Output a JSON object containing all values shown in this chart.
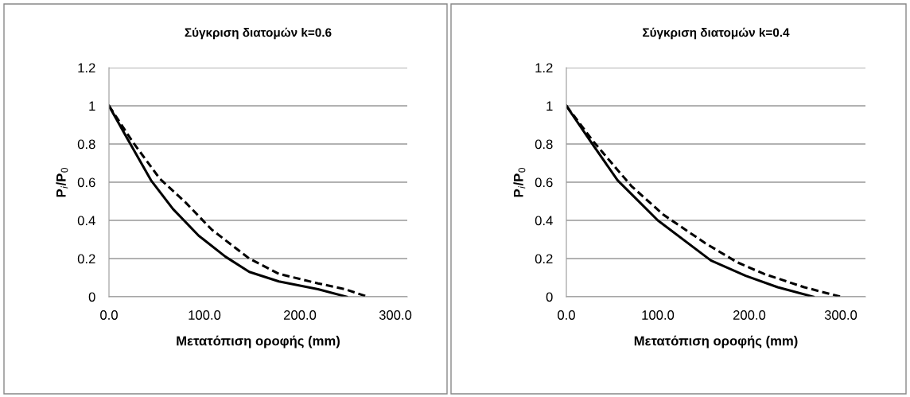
{
  "chart_data": [
    {
      "type": "line",
      "title": "Σύγκριση διατομών k=0.6",
      "xlabel": "Μετατόπιση οροφής (mm)",
      "ylabel": "P$_{i}$/P$_{0}$",
      "grid": "y",
      "marker": "none",
      "xlim": [
        0,
        312.5
      ],
      "xticks": [
        {
          "value": 0,
          "label": "0.0"
        },
        {
          "value": 100,
          "label": "100.0"
        },
        {
          "value": 200,
          "label": "200.0"
        },
        {
          "value": 300,
          "label": "300.0"
        }
      ],
      "ylim": [
        0,
        1.2
      ],
      "yticks": [
        0,
        0.2,
        0.4,
        0.6,
        0.8,
        1,
        1.2
      ],
      "series": [
        {
          "color": "#000000",
          "line_style": "solid",
          "x": [
            0,
            19,
            44,
            67,
            94,
            122,
            147,
            178,
            219,
            249
          ],
          "values": [
            1,
            0.83,
            0.61,
            0.46,
            0.32,
            0.21,
            0.13,
            0.08,
            0.04,
            0
          ]
        },
        {
          "color": "#000000",
          "line_style": "dashed",
          "x": [
            0,
            25,
            53,
            81,
            108,
            147,
            178,
            219,
            247,
            271
          ],
          "values": [
            1,
            0.81,
            0.62,
            0.49,
            0.35,
            0.2,
            0.12,
            0.07,
            0.04,
            0
          ]
        }
      ]
    },
    {
      "type": "line",
      "title": "Σύγκριση διατομών k=0.4",
      "xlabel": "Μετατόπιση οροφής (mm)",
      "ylabel": "P$_{i}$/P$_{0}$",
      "grid": "y",
      "marker": "none",
      "xlim": [
        0,
        327
      ],
      "xticks": [
        {
          "value": 0,
          "label": "0.0"
        },
        {
          "value": 100,
          "label": "100.0"
        },
        {
          "value": 200,
          "label": "200.0"
        },
        {
          "value": 300,
          "label": "300.0"
        }
      ],
      "ylim": [
        0,
        1.2
      ],
      "yticks": [
        0,
        0.2,
        0.4,
        0.6,
        0.8,
        1,
        1.2
      ],
      "series": [
        {
          "color": "#000000",
          "line_style": "solid",
          "x": [
            0,
            27,
            56,
            100,
            158,
            196,
            231,
            270
          ],
          "values": [
            1,
            0.81,
            0.61,
            0.4,
            0.19,
            0.11,
            0.05,
            0
          ]
        },
        {
          "color": "#000000",
          "line_style": "dashed",
          "x": [
            0,
            30,
            71,
            106,
            152,
            187,
            216,
            260,
            300
          ],
          "values": [
            1,
            0.81,
            0.58,
            0.43,
            0.28,
            0.18,
            0.12,
            0.05,
            0
          ]
        }
      ]
    }
  ]
}
